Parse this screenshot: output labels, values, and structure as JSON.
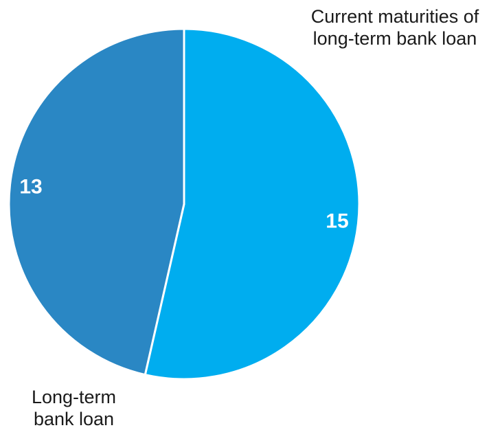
{
  "chart_data": {
    "type": "pie",
    "slices": [
      {
        "label": "Current maturities of\nlong-term bank loan",
        "value": 15,
        "color": "#00adef"
      },
      {
        "label": "Long-term\nbank loan",
        "value": 13,
        "color": "#2a87c4"
      }
    ],
    "start_angle_deg": 0,
    "direction": "clockwise",
    "separator_color": "#ffffff",
    "data_label_color": "#ffffff"
  }
}
